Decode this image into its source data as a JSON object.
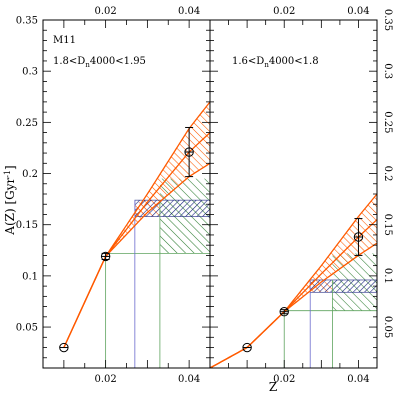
{
  "chart_data": [
    {
      "type": "line",
      "panel": "left",
      "annotations": {
        "line1": "M11",
        "line2_prefix": "1.8<D",
        "line2_sub": "n",
        "line2_suffix": "4000<1.95"
      },
      "xlabel": "Z",
      "ylabel_main": "A(Z) [Gyr",
      "ylabel_sup": "-1",
      "ylabel_end": "]",
      "xlim": [
        0.005,
        0.045
      ],
      "ylim": [
        0.01,
        0.35
      ],
      "x_ticks_top": [
        0.02,
        0.04
      ],
      "y_ticks": [
        0.05,
        0.1,
        0.15,
        0.2,
        0.25,
        0.3,
        0.35
      ],
      "grid": false,
      "curve": {
        "central": {
          "x": [
            0.01,
            0.02,
            0.03,
            0.04,
            0.045
          ],
          "y": [
            0.03,
            0.119,
            0.172,
            0.221,
            0.24
          ]
        },
        "upper": {
          "x": [
            0.01,
            0.02,
            0.03,
            0.04,
            0.045
          ],
          "y": [
            0.03,
            0.119,
            0.18,
            0.244,
            0.27
          ]
        },
        "lower": {
          "x": [
            0.01,
            0.02,
            0.03,
            0.04,
            0.045
          ],
          "y": [
            0.03,
            0.119,
            0.162,
            0.197,
            0.21
          ]
        }
      },
      "points": [
        {
          "x": 0.01,
          "y": 0.03,
          "yerr": 0
        },
        {
          "x": 0.02,
          "y": 0.119,
          "yerr": 0.003
        },
        {
          "x": 0.04,
          "y": 0.221,
          "yerr": 0.024
        }
      ],
      "blue_band": {
        "x": [
          0.027,
          0.045
        ],
        "y": [
          0.158,
          0.174
        ]
      },
      "green_box": {
        "x": [
          0.033,
          0.045
        ],
        "y": [
          0.122,
          0.195
        ]
      },
      "orange_box": {
        "x": [
          0.027,
          0.033
        ],
        "y": [
          0.158,
          0.172
        ]
      },
      "guide_x": [
        0.02,
        0.027,
        0.033
      ],
      "guide_y": 0.122,
      "colors": {
        "orange": "#ff5a00",
        "blue": "#1a237e",
        "green": "#2e7d32",
        "thin_blue": "#6a6acd",
        "thin_green": "#5fa35f"
      }
    },
    {
      "type": "line",
      "panel": "right",
      "annotations": {
        "line2_prefix": "1.6<D",
        "line2_sub": "n",
        "line2_suffix": "4000<1.8"
      },
      "xlabel": "Z",
      "xlim": [
        0.0,
        0.045
      ],
      "ylim": [
        0.01,
        0.35
      ],
      "x_ticks_top": [
        0.02,
        0.04
      ],
      "y_ticks_right": [
        0.05,
        0.1,
        0.15,
        0.2,
        0.25,
        0.3,
        0.35
      ],
      "grid": false,
      "curve": {
        "central": {
          "x": [
            0.0,
            0.01,
            0.02,
            0.03,
            0.04,
            0.045
          ],
          "y": [
            0.01,
            0.03,
            0.065,
            0.102,
            0.138,
            0.155
          ]
        },
        "upper": {
          "x": [
            0.0,
            0.01,
            0.02,
            0.03,
            0.04,
            0.045
          ],
          "y": [
            0.01,
            0.03,
            0.065,
            0.11,
            0.158,
            0.18
          ]
        },
        "lower": {
          "x": [
            0.0,
            0.01,
            0.02,
            0.03,
            0.04,
            0.045
          ],
          "y": [
            0.01,
            0.03,
            0.065,
            0.094,
            0.12,
            0.132
          ]
        }
      },
      "points": [
        {
          "x": 0.01,
          "y": 0.03,
          "yerr": 0
        },
        {
          "x": 0.02,
          "y": 0.065,
          "yerr": 0.002
        },
        {
          "x": 0.04,
          "y": 0.138,
          "yerr": 0.018
        }
      ],
      "blue_band": {
        "x": [
          0.027,
          0.045
        ],
        "y": [
          0.084,
          0.096
        ]
      },
      "green_box": {
        "x": [
          0.033,
          0.045
        ],
        "y": [
          0.066,
          0.122
        ]
      },
      "orange_box": {
        "x": [
          0.027,
          0.033
        ],
        "y": [
          0.084,
          0.094
        ]
      },
      "guide_x": [
        0.02,
        0.027,
        0.033
      ],
      "guide_y": 0.066,
      "colors": {
        "orange": "#ff5a00",
        "blue": "#1a237e",
        "green": "#2e7d32",
        "thin_blue": "#6a6acd",
        "thin_green": "#5fa35f"
      }
    }
  ]
}
